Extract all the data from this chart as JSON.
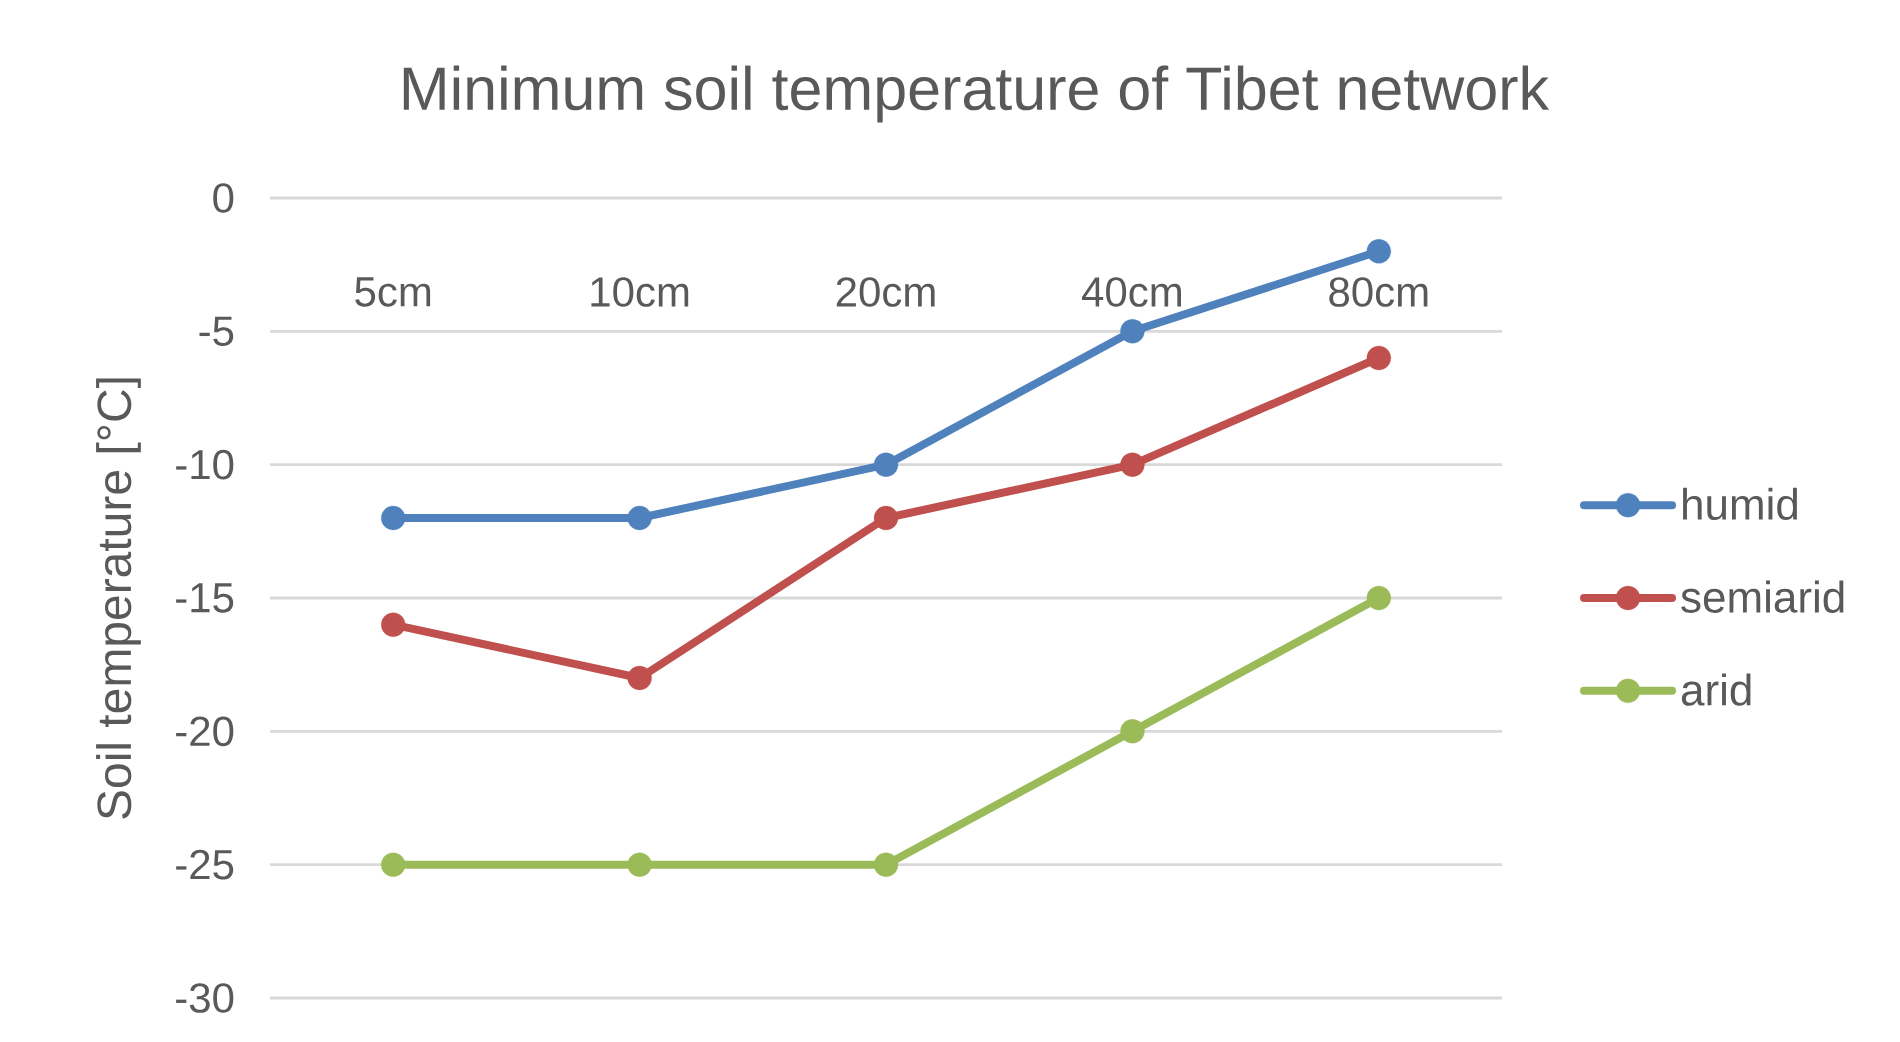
{
  "chart_data": {
    "type": "line",
    "title": "Minimum soil temperature of Tibet network",
    "ylabel": "Soil temperature [°C]",
    "categories": [
      "5cm",
      "10cm",
      "20cm",
      "40cm",
      "80cm"
    ],
    "series": [
      {
        "name": "humid",
        "color": "#4f81bd",
        "values": [
          -12,
          -12,
          -10,
          -5,
          -2
        ]
      },
      {
        "name": "semiarid",
        "color": "#c0504d",
        "values": [
          -16,
          -18,
          -12,
          -10,
          -6
        ]
      },
      {
        "name": "arid",
        "color": "#9bbb59",
        "values": [
          -25,
          -25,
          -25,
          -20,
          -15
        ]
      }
    ],
    "ylim": [
      -30,
      0
    ],
    "yticks": [
      -30,
      -25,
      -20,
      -15,
      -10,
      -5,
      0
    ],
    "grid": "y",
    "legend": "right",
    "marker": "circle"
  }
}
